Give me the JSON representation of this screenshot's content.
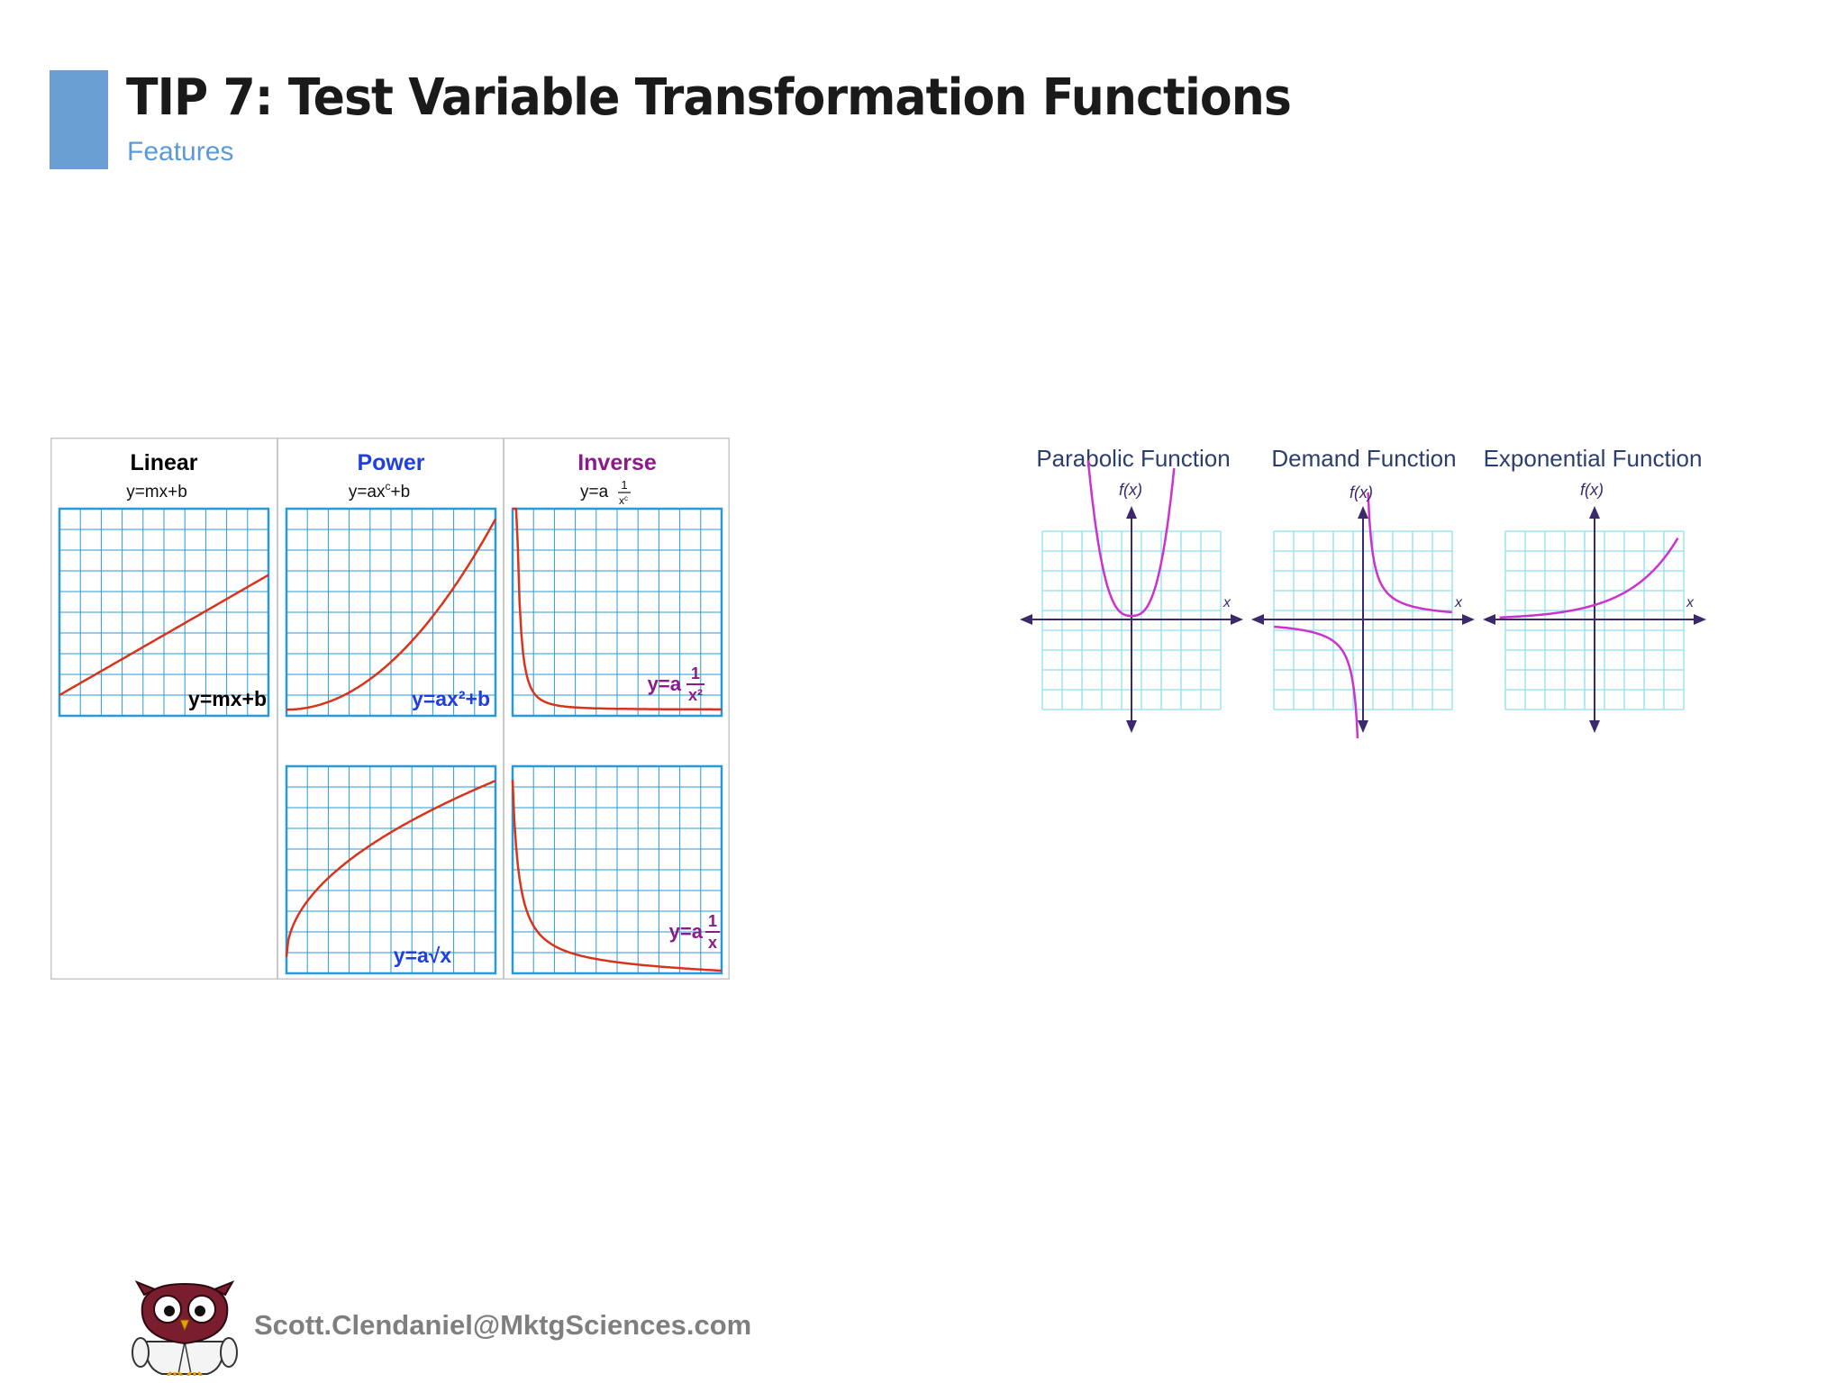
{
  "slide": {
    "title": "TIP 7: Test Variable Transformation Functions",
    "subtitle": "Features",
    "accent_color": "#6a9fd4"
  },
  "left_figure": {
    "columns": [
      {
        "heading": "Linear",
        "heading_color": "#000000",
        "formula": "y=mx+b"
      },
      {
        "heading": "Power",
        "heading_color": "#1f3fe0",
        "formula": "y=ax",
        "formula_sup": "c",
        "formula_tail": "+b"
      },
      {
        "heading": "Inverse",
        "heading_color": "#8b1a8b",
        "formula": "y=a",
        "formula_num": "1",
        "formula_den": "x",
        "formula_den_sup": "c"
      }
    ],
    "graphs": [
      {
        "id": "linear",
        "label": "y=mx+b",
        "label_color": "#000000"
      },
      {
        "id": "power-square",
        "label": "y=ax²+b",
        "label_color": "#1f3fe0"
      },
      {
        "id": "inverse-square",
        "label_prefix": "y=a",
        "label_num": "1",
        "label_den": "x²",
        "label_color": "#8b1a8b"
      },
      {
        "id": "power-sqrt",
        "label": "y=a√x",
        "label_color": "#1f3fe0"
      },
      {
        "id": "inverse",
        "label_prefix": "y=a",
        "label_num": "1",
        "label_den": "x",
        "label_color": "#8b1a8b"
      }
    ],
    "grid_color": "#2a9ad6",
    "curve_color": "#d8341c"
  },
  "right_figure": {
    "graphs": [
      {
        "id": "parabolic",
        "title": "Parabolic Function",
        "y_axis": "f(x)",
        "x_axis": "x"
      },
      {
        "id": "demand",
        "title": "Demand Function",
        "y_axis": "f(x)",
        "x_axis": "x"
      },
      {
        "id": "exponential",
        "title": "Exponential Function",
        "y_axis": "f(x)",
        "x_axis": "x"
      }
    ],
    "title_color": "#2c3e6e",
    "grid_color": "#8fe0ea",
    "axis_color": "#3b2a6b",
    "curve_color": "#cc33cc"
  },
  "footer": {
    "email": "Scott.Clendaniel@MktgSciences.com",
    "logo": "owl-scientist-logo"
  }
}
